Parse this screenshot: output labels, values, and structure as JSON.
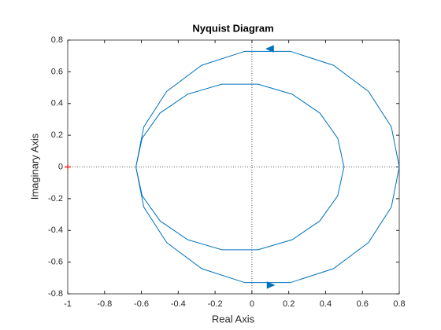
{
  "chart_data": {
    "type": "line",
    "title": "Nyquist Diagram",
    "x_label": "Real Axis",
    "y_label": "Imaginary Axis",
    "color": "#0072bd",
    "x": [
      0.5,
      0.466,
      0.368,
      0.218,
      0.033,
      -0.163,
      -0.348,
      -0.498,
      -0.596,
      -0.63,
      -0.587,
      -0.463,
      -0.273,
      -0.039,
      0.209,
      0.443,
      0.633,
      0.757,
      0.8,
      0.757,
      0.633,
      0.443,
      0.209,
      -0.039,
      -0.273,
      -0.463,
      -0.587,
      -0.63,
      -0.596,
      -0.498,
      -0.348,
      -0.163,
      0.033,
      0.218,
      0.368,
      0.466,
      0.5
    ],
    "y": [
      0,
      0.181,
      0.341,
      0.459,
      0.522,
      0.522,
      0.459,
      0.341,
      0.181,
      0,
      -0.253,
      -0.476,
      -0.641,
      -0.729,
      -0.729,
      -0.641,
      -0.476,
      -0.253,
      0,
      0.253,
      0.476,
      0.641,
      0.729,
      0.729,
      0.641,
      0.476,
      0.253,
      0,
      -0.181,
      -0.341,
      -0.459,
      -0.522,
      -0.522,
      -0.459,
      -0.341,
      -0.181,
      0
    ],
    "arrows": [
      {
        "x": 0.1,
        "y": 0.745
      },
      {
        "x": 0.1,
        "y": -0.745
      }
    ],
    "critical_point": {
      "x": -1,
      "y": 0,
      "color": "#ff0000"
    },
    "xlim": [
      -1,
      0.8
    ],
    "ylim": [
      -0.8,
      0.8
    ],
    "xticks": [
      -1,
      -0.8,
      -0.6,
      -0.4,
      -0.2,
      0,
      0.2,
      0.4,
      0.6,
      0.8
    ],
    "yticks": [
      -0.8,
      -0.6,
      -0.4,
      -0.2,
      0,
      0.2,
      0.4,
      0.6,
      0.8
    ],
    "zero_lines": true
  }
}
